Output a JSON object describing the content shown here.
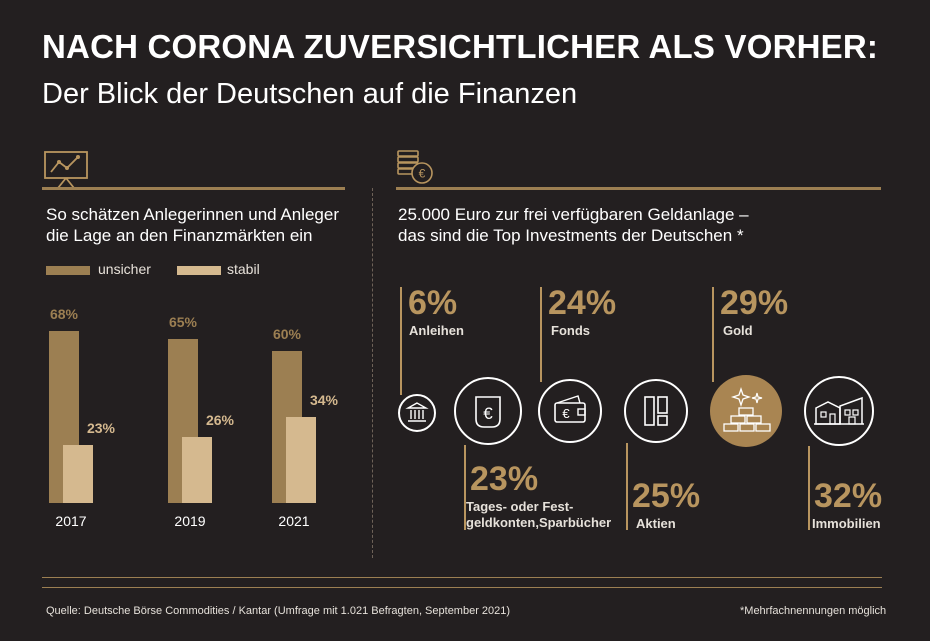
{
  "header": {
    "title": "NACH CORONA ZUVERSICHTLICHER ALS VORHER:",
    "subtitle": "Der Blick der Deutschen auf die Finanzen"
  },
  "left_panel": {
    "heading_line1": "So schätzen Anlegerinnen und Anleger",
    "heading_line2": "die Lage an den Finanzmärkten ein",
    "icon": "chart-board-icon"
  },
  "right_panel": {
    "heading_line1": "25.000 Euro zur frei verfügbaren Geldanlage –",
    "heading_line2": "das sind die Top Investments der Deutschen *",
    "icon": "coin-stack-euro-icon"
  },
  "colors": {
    "background": "#231f20",
    "unsicher": "#9c7f52",
    "stabil": "#d5b98f",
    "accent": "#b8955f",
    "gold_circle": "#a98552"
  },
  "chart_data": [
    {
      "type": "bar",
      "categories": [
        "2017",
        "2019",
        "2021"
      ],
      "series": [
        {
          "name": "unsicher",
          "values": [
            68,
            65,
            60
          ],
          "labels": [
            "68%",
            "65%",
            "60%"
          ]
        },
        {
          "name": "stabil",
          "values": [
            23,
            26,
            34
          ],
          "labels": [
            "23%",
            "26%",
            "34%"
          ]
        }
      ],
      "ylim": [
        0,
        100
      ],
      "legend": "top-left",
      "grid": false
    },
    {
      "type": "bar",
      "categories": [
        "Anleihen",
        "Tages- oder Festgeldkonten, Sparbücher",
        "Fonds",
        "Aktien",
        "Gold",
        "Immobilien"
      ],
      "values": [
        6,
        23,
        24,
        25,
        29,
        32
      ],
      "labels": [
        {
          "value": "6%",
          "line1": "Anleihen",
          "line2": "",
          "icon": "bank-building-icon"
        },
        {
          "value": "23%",
          "line1": "Tages- oder Fest-",
          "line2": "geldkonten,Sparbücher",
          "icon": "euro-note-icon"
        },
        {
          "value": "24%",
          "line1": "Fonds",
          "line2": "",
          "icon": "wallet-euro-icon"
        },
        {
          "value": "25%",
          "line1": "Aktien",
          "line2": "",
          "icon": "stock-panels-icon"
        },
        {
          "value": "29%",
          "line1": "Gold",
          "line2": "",
          "icon": "gold-bars-icon"
        },
        {
          "value": "32%",
          "line1": "Immobilien",
          "line2": "",
          "icon": "houses-icon"
        }
      ]
    }
  ],
  "footer": {
    "source": "Quelle: Deutsche Börse Commodities / Kantar (Umfrage mit 1.021 Befragten, September 2021)",
    "note": "*Mehrfachnennungen möglich"
  }
}
